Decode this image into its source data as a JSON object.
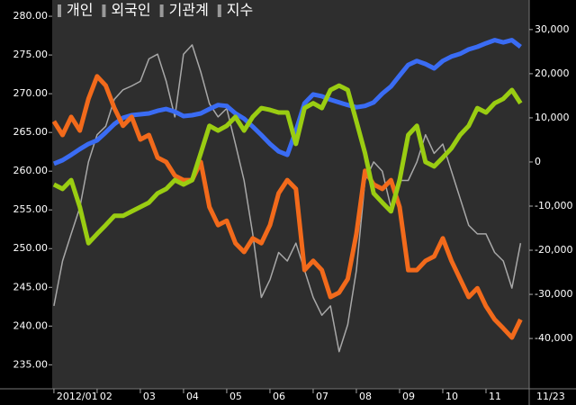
{
  "chart_data": {
    "type": "line",
    "end_date": "11/23",
    "x": [
      1,
      1.2,
      1.4,
      1.6,
      1.8,
      2,
      2.2,
      2.4,
      2.6,
      2.8,
      3,
      3.2,
      3.4,
      3.6,
      3.8,
      4,
      4.2,
      4.4,
      4.6,
      4.8,
      5,
      5.2,
      5.4,
      5.6,
      5.8,
      6,
      6.2,
      6.4,
      6.6,
      6.8,
      7,
      7.2,
      7.4,
      7.6,
      7.8,
      8,
      8.2,
      8.4,
      8.6,
      8.8,
      9,
      9.2,
      9.4,
      9.6,
      9.8,
      10,
      10.2,
      10.4,
      10.6,
      10.8,
      11,
      11.2,
      11.4,
      11.6,
      11.8
    ],
    "xlim": [
      0.96,
      12
    ],
    "xticks": [
      {
        "value": 1,
        "label": "2012/01"
      },
      {
        "value": 2,
        "label": "02"
      },
      {
        "value": 3,
        "label": "03"
      },
      {
        "value": 4,
        "label": "04"
      },
      {
        "value": 5,
        "label": "05"
      },
      {
        "value": 6,
        "label": "06"
      },
      {
        "value": 7,
        "label": "07"
      },
      {
        "value": 8,
        "label": "08"
      },
      {
        "value": 9,
        "label": "09"
      },
      {
        "value": 10,
        "label": "10"
      },
      {
        "value": 11,
        "label": "11"
      }
    ],
    "ylim": [
      231.9,
      282.1
    ],
    "yticks": [
      {
        "value": 235,
        "label": "235.00"
      },
      {
        "value": 240,
        "label": "240.00"
      },
      {
        "value": 245,
        "label": "245.00"
      },
      {
        "value": 250,
        "label": "250.00"
      },
      {
        "value": 255,
        "label": "255.00"
      },
      {
        "value": 260,
        "label": "260.00"
      },
      {
        "value": 265,
        "label": "265.00"
      },
      {
        "value": 270,
        "label": "270.00"
      },
      {
        "value": 275,
        "label": "275.00"
      },
      {
        "value": 280,
        "label": "280.00"
      }
    ],
    "y2lim": [
      -51400,
      36700
    ],
    "y2ticks": [
      {
        "value": -40000,
        "label": "-40,000"
      },
      {
        "value": -30000,
        "label": "-30,000"
      },
      {
        "value": -20000,
        "label": "-20,000"
      },
      {
        "value": -10000,
        "label": "-10,000"
      },
      0,
      {
        "value": 10000,
        "label": "10,000"
      },
      {
        "value": 20000,
        "label": "20,000"
      },
      {
        "value": 30000,
        "label": "30,000"
      }
    ],
    "series": [
      {
        "name": "개인",
        "color": "#3a6cf4",
        "axis": "y2",
        "values": [
          -400,
          400,
          1600,
          2900,
          4100,
          4900,
          6700,
          8600,
          10000,
          10600,
          10800,
          11000,
          11600,
          12000,
          11400,
          10400,
          10600,
          11000,
          12000,
          12900,
          12700,
          11000,
          9800,
          8000,
          6100,
          4100,
          2400,
          1600,
          7100,
          13300,
          15300,
          14900,
          14100,
          13500,
          12900,
          12400,
          12700,
          13500,
          15500,
          17100,
          19600,
          22000,
          22900,
          22200,
          21200,
          22900,
          23900,
          24500,
          25500,
          26100,
          26900,
          27600,
          27100,
          27600,
          26100
        ]
      },
      {
        "name": "외국인",
        "color": "#f26a1b",
        "axis": "y2",
        "values": [
          9200,
          6100,
          10200,
          7100,
          14300,
          19400,
          17300,
          12200,
          8200,
          10200,
          5100,
          6100,
          1000,
          0,
          -3100,
          -4100,
          -4100,
          0,
          -10200,
          -14300,
          -13300,
          -18400,
          -20400,
          -17300,
          -18400,
          -14300,
          -7100,
          -4100,
          -6100,
          -24500,
          -22400,
          -24500,
          -30600,
          -29600,
          -26500,
          -16300,
          -2000,
          -5100,
          -6100,
          -4100,
          -10200,
          -24500,
          -24500,
          -22400,
          -21400,
          -17300,
          -22400,
          -26500,
          -30600,
          -28600,
          -32700,
          -35700,
          -37700,
          -39800,
          -35700
        ]
      },
      {
        "name": "기관계",
        "color": "#9acd12",
        "axis": "y2",
        "values": [
          -5100,
          -6100,
          -4100,
          -10200,
          -18400,
          -16300,
          -14300,
          -12200,
          -12200,
          -11200,
          -10200,
          -9200,
          -7100,
          -6100,
          -4100,
          -5100,
          -4100,
          2000,
          8200,
          7100,
          8200,
          10200,
          7100,
          10200,
          12200,
          11800,
          11200,
          11200,
          4100,
          12200,
          13300,
          12200,
          16300,
          17300,
          16300,
          9200,
          2000,
          -7100,
          -9200,
          -11200,
          -4100,
          6100,
          8200,
          0,
          -1000,
          1000,
          3100,
          6100,
          8200,
          12200,
          11200,
          13300,
          14300,
          16300,
          13300
        ]
      },
      {
        "name": "지수",
        "color": "#a8a8a8",
        "axis": "y",
        "values": [
          242.6,
          248.4,
          251.9,
          255.3,
          261.2,
          264.7,
          265.8,
          269.3,
          270.5,
          271.0,
          271.6,
          274.5,
          275.1,
          271.6,
          267.0,
          275.1,
          276.3,
          272.8,
          268.7,
          267.0,
          268.1,
          263.5,
          258.8,
          251.9,
          243.7,
          246.0,
          249.5,
          248.4,
          250.7,
          247.2,
          243.7,
          241.4,
          242.6,
          236.7,
          240.2,
          247.2,
          258.8,
          261.2,
          260.0,
          255.3,
          258.8,
          258.8,
          261.2,
          264.7,
          262.3,
          263.5,
          260.0,
          256.5,
          253.0,
          251.9,
          251.9,
          249.5,
          248.4,
          244.9,
          250.7
        ]
      }
    ]
  }
}
